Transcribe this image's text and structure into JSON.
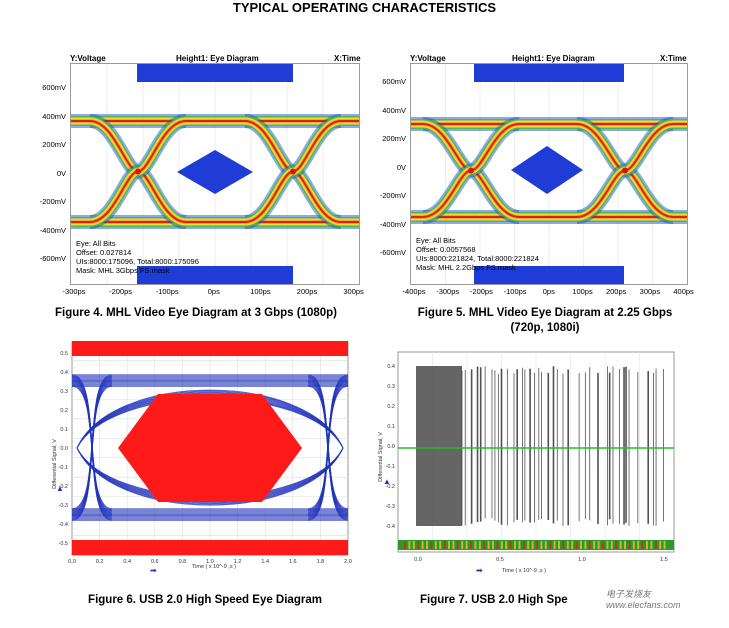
{
  "page_title": "TYPICAL OPERATING CHARACTERISTICS",
  "fig4": {
    "y_axis_label": "Y:Voltage",
    "plot_title": "Height1: Eye Diagram",
    "x_axis_label": "X:Time",
    "y_ticks": [
      "600mV",
      "400mV",
      "200mV",
      "0V",
      "-200mV",
      "-400mV",
      "-600mV"
    ],
    "x_ticks": [
      "-300ps",
      "-200ps",
      "-100ps",
      "0ps",
      "100ps",
      "200ps",
      "300ps"
    ],
    "info": [
      "Eye: All Bits",
      "Offset: 0.027814",
      "UIs:8000:175096, Total:8000:175096",
      "Mask: MHL 3Gbps FS.mask"
    ],
    "caption": "Figure 4. MHL Video Eye Diagram at 3 Gbps (1080p)"
  },
  "fig5": {
    "y_axis_label": "Y:Voltage",
    "plot_title": "Height1: Eye Diagram",
    "x_axis_label": "X:Time",
    "y_ticks": [
      "600mV",
      "400mV",
      "200mV",
      "0V",
      "-200mV",
      "-400mV",
      "-600mV"
    ],
    "x_ticks": [
      "-400ps",
      "-300ps",
      "-200ps",
      "-100ps",
      "0ps",
      "100ps",
      "200ps",
      "300ps",
      "400ps"
    ],
    "info": [
      "Eye: All Bits",
      "Offset: 0.0057568",
      "UIs:8000:221824, Total:8000:221824",
      "Mask: MHL 2.2Gbps FS.mask"
    ],
    "caption_line1": "Figure 5. MHL Video Eye Diagram at 2.25 Gbps",
    "caption_line2": "(720p, 1080i)"
  },
  "fig6": {
    "y_axis_label": "Differential Signal, V",
    "x_axis_label": "Time ( x 10^-9 ,s )",
    "y_ticks": [
      "0.5",
      "0.4",
      "0.3",
      "0.2",
      "0.1",
      "0.0",
      "-0.1",
      "-0.2",
      "-0.3",
      "-0.4",
      "-0.5"
    ],
    "x_ticks": [
      "0.0",
      "0.2",
      "0.4",
      "0.6",
      "0.8",
      "1.0",
      "1.2",
      "1.4",
      "1.6",
      "1.8",
      "2.0"
    ],
    "caption": "Figure 6. USB 2.0 High Speed Eye Diagram"
  },
  "fig7": {
    "y_axis_label": "Differential Signal, V",
    "x_axis_label": "Time ( x 10^-9 ,s )",
    "y_ticks": [
      "0.4",
      "0.3",
      "0.2",
      "0.1",
      "0.0",
      "-0.1",
      "-0.2",
      "-0.3",
      "-0.4"
    ],
    "x_ticks": [
      "0.0",
      "0.5",
      "1.0",
      "1.5"
    ],
    "caption": "Figure 7. USB 2.0  High Spe",
    "watermark": "电子发烧友 www.elecfans.com"
  },
  "colors": {
    "mask_blue": "#1f3cd6",
    "eye_red": "#e01010",
    "eye_yellow": "#f5e23a",
    "trace_blue": "#2233bb",
    "usb_red": "#ff1a1a",
    "green_line": "#22c022"
  }
}
